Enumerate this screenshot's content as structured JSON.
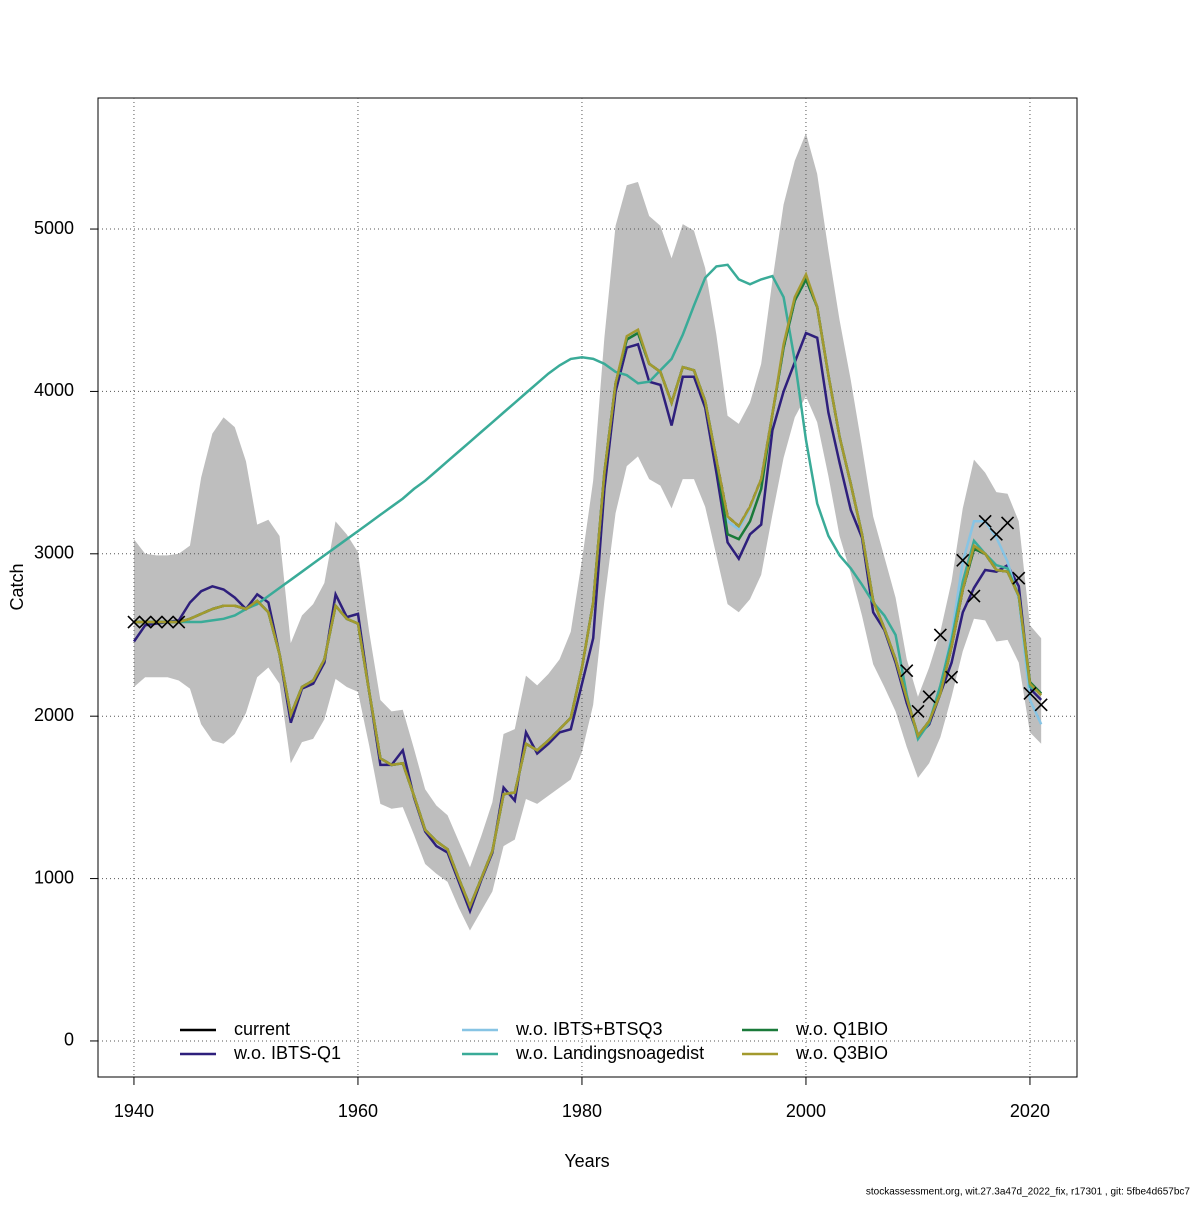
{
  "chart_data": {
    "type": "line",
    "x_label": "Years",
    "y_label": "Catch",
    "footer": "stockassessment.org, wit.27.3a47d_2022_fix, r17301 , git: 5fbe4d657bc7",
    "x": [
      1940,
      1941,
      1942,
      1943,
      1944,
      1945,
      1946,
      1947,
      1948,
      1949,
      1950,
      1951,
      1952,
      1953,
      1954,
      1955,
      1956,
      1957,
      1958,
      1959,
      1960,
      1961,
      1962,
      1963,
      1964,
      1965,
      1966,
      1967,
      1968,
      1969,
      1970,
      1971,
      1972,
      1973,
      1974,
      1975,
      1976,
      1977,
      1978,
      1979,
      1980,
      1981,
      1982,
      1983,
      1984,
      1985,
      1986,
      1987,
      1988,
      1989,
      1990,
      1991,
      1992,
      1993,
      1994,
      1995,
      1996,
      1997,
      1998,
      1999,
      2000,
      2001,
      2002,
      2003,
      2004,
      2005,
      2006,
      2007,
      2008,
      2009,
      2010,
      2011,
      2012,
      2013,
      2014,
      2015,
      2016,
      2017,
      2018,
      2019,
      2020,
      2021
    ],
    "band": {
      "color": "#bebebe",
      "upper": [
        3090,
        3000,
        2990,
        2990,
        3000,
        3050,
        3470,
        3740,
        3840,
        3780,
        3570,
        3180,
        3210,
        3110,
        2450,
        2620,
        2690,
        2820,
        3200,
        3120,
        3010,
        2520,
        2100,
        2030,
        2040,
        1800,
        1550,
        1450,
        1390,
        1230,
        1070,
        1260,
        1470,
        1890,
        1920,
        2250,
        2190,
        2260,
        2350,
        2520,
        2960,
        3450,
        4330,
        5020,
        5270,
        5290,
        5080,
        5020,
        4820,
        5030,
        4990,
        4760,
        4350,
        3850,
        3800,
        3930,
        4170,
        4680,
        5150,
        5420,
        5590,
        5340,
        4870,
        4440,
        4070,
        3660,
        3230,
        2980,
        2730,
        2350,
        2120,
        2300,
        2520,
        2830,
        3280,
        3580,
        3500,
        3380,
        3370,
        3200,
        2560,
        2480
      ],
      "lower": [
        2180,
        2240,
        2240,
        2240,
        2220,
        2170,
        1950,
        1850,
        1830,
        1890,
        2020,
        2240,
        2300,
        2200,
        1710,
        1840,
        1860,
        1980,
        2230,
        2180,
        2150,
        1820,
        1460,
        1430,
        1440,
        1270,
        1090,
        1030,
        980,
        820,
        680,
        800,
        920,
        1200,
        1240,
        1490,
        1460,
        1510,
        1560,
        1610,
        1780,
        2070,
        2710,
        3250,
        3540,
        3600,
        3460,
        3420,
        3280,
        3460,
        3460,
        3290,
        2990,
        2690,
        2640,
        2720,
        2870,
        3240,
        3590,
        3840,
        3970,
        3810,
        3480,
        3110,
        2880,
        2620,
        2320,
        2180,
        2030,
        1810,
        1620,
        1710,
        1870,
        2120,
        2400,
        2600,
        2590,
        2460,
        2470,
        2330,
        1900,
        1830
      ]
    },
    "series": [
      {
        "name": "current",
        "color": "#000000",
        "values": [
          2580,
          2580,
          2580,
          2580,
          2580,
          2600,
          2630,
          2660,
          2680,
          2680,
          2660,
          2710,
          2640,
          2380,
          2010,
          2180,
          2220,
          2350,
          2680,
          2600,
          2570,
          2150,
          1740,
          1700,
          1710,
          1510,
          1300,
          1230,
          1180,
          1000,
          830,
          1000,
          1170,
          1520,
          1530,
          1830,
          1790,
          1850,
          1920,
          1990,
          2300,
          2700,
          3500,
          4050,
          4320,
          4360,
          4170,
          4120,
          3930,
          4150,
          4130,
          3940,
          3580,
          3230,
          3170,
          3290,
          3460,
          3860,
          4270,
          4560,
          4690,
          4520,
          4100,
          3720,
          3430,
          3120,
          2710,
          2540,
          2350,
          2110,
          1880,
          1970,
          2140,
          2430,
          2780,
          3030,
          3000,
          2900,
          2890,
          2740,
          2200,
          2130
        ]
      },
      {
        "name": "w.o. IBTS-Q1",
        "color": "#2e1f7c",
        "values": [
          2460,
          2560,
          2570,
          2580,
          2590,
          2700,
          2770,
          2800,
          2780,
          2730,
          2660,
          2750,
          2700,
          2380,
          1960,
          2170,
          2200,
          2330,
          2750,
          2610,
          2630,
          2150,
          1700,
          1700,
          1790,
          1500,
          1290,
          1200,
          1160,
          980,
          800,
          990,
          1160,
          1560,
          1480,
          1900,
          1770,
          1830,
          1900,
          1920,
          2200,
          2480,
          3400,
          4000,
          4270,
          4290,
          4060,
          4040,
          3790,
          4090,
          4090,
          3900,
          3500,
          3070,
          2970,
          3120,
          3180,
          3760,
          4000,
          4180,
          4360,
          4330,
          3870,
          3560,
          3270,
          3100,
          2640,
          2530,
          2330,
          2080,
          1880,
          1950,
          2140,
          2330,
          2640,
          2790,
          2900,
          2890,
          2930,
          2800,
          2170,
          2100
        ]
      },
      {
        "name": "w.o. IBTS+BTSQ3",
        "color": "#87c4e4",
        "values": [
          2580,
          2580,
          2580,
          2580,
          2580,
          2600,
          2630,
          2660,
          2680,
          2680,
          2660,
          2710,
          2640,
          2380,
          2010,
          2180,
          2220,
          2350,
          2680,
          2600,
          2570,
          2150,
          1740,
          1700,
          1710,
          1510,
          1300,
          1230,
          1180,
          1000,
          830,
          1000,
          1170,
          1520,
          1530,
          1830,
          1790,
          1850,
          1920,
          1990,
          2300,
          2700,
          3500,
          4050,
          4320,
          4360,
          4170,
          4120,
          3930,
          4150,
          4130,
          3940,
          3580,
          3200,
          3150,
          3280,
          3460,
          3860,
          4270,
          4560,
          4690,
          4520,
          4100,
          3720,
          3430,
          3120,
          2710,
          2540,
          2350,
          2110,
          1880,
          1970,
          2180,
          2500,
          2950,
          3200,
          3200,
          3100,
          2950,
          2720,
          2100,
          1950
        ]
      },
      {
        "name": "w.o. Landingsnoagedist",
        "color": "#3aab98",
        "values": [
          2580,
          2580,
          2580,
          2580,
          2580,
          2580,
          2580,
          2590,
          2600,
          2620,
          2660,
          2690,
          2740,
          2790,
          2840,
          2890,
          2940,
          2990,
          3040,
          3090,
          3140,
          3190,
          3240,
          3290,
          3340,
          3400,
          3450,
          3510,
          3570,
          3630,
          3690,
          3750,
          3810,
          3870,
          3930,
          3990,
          4050,
          4110,
          4160,
          4200,
          4210,
          4200,
          4170,
          4120,
          4100,
          4050,
          4060,
          4130,
          4200,
          4350,
          4530,
          4700,
          4770,
          4780,
          4690,
          4660,
          4690,
          4710,
          4580,
          4190,
          3700,
          3310,
          3110,
          2990,
          2910,
          2810,
          2700,
          2620,
          2500,
          2130,
          1860,
          1960,
          2190,
          2470,
          2830,
          3080,
          3000,
          2930,
          2910,
          2740,
          2180,
          2140
        ]
      },
      {
        "name": "w.o. Q1BIO",
        "color": "#1a7a3a",
        "values": [
          2580,
          2580,
          2580,
          2580,
          2580,
          2600,
          2630,
          2660,
          2680,
          2680,
          2660,
          2710,
          2640,
          2380,
          2010,
          2180,
          2220,
          2350,
          2680,
          2600,
          2570,
          2150,
          1740,
          1700,
          1710,
          1510,
          1300,
          1230,
          1180,
          1000,
          830,
          1000,
          1170,
          1520,
          1530,
          1830,
          1790,
          1850,
          1920,
          1990,
          2300,
          2700,
          3500,
          4050,
          4320,
          4360,
          4170,
          4120,
          3930,
          4150,
          4130,
          3940,
          3580,
          3120,
          3090,
          3200,
          3400,
          3860,
          4270,
          4560,
          4690,
          4520,
          4100,
          3720,
          3430,
          3120,
          2710,
          2540,
          2350,
          2110,
          1880,
          1970,
          2140,
          2430,
          2780,
          3030,
          3000,
          2900,
          2890,
          2740,
          2210,
          2140
        ]
      },
      {
        "name": "w.o. Q3BIO",
        "color": "#a39a2e",
        "values": [
          2580,
          2580,
          2580,
          2580,
          2580,
          2600,
          2630,
          2660,
          2680,
          2680,
          2660,
          2710,
          2640,
          2380,
          2010,
          2180,
          2220,
          2350,
          2680,
          2600,
          2570,
          2150,
          1740,
          1700,
          1710,
          1510,
          1300,
          1230,
          1180,
          1000,
          830,
          1000,
          1170,
          1520,
          1530,
          1830,
          1790,
          1850,
          1920,
          1990,
          2300,
          2700,
          3500,
          4050,
          4340,
          4380,
          4170,
          4120,
          3930,
          4150,
          4130,
          3940,
          3580,
          3230,
          3170,
          3290,
          3460,
          3860,
          4290,
          4580,
          4720,
          4520,
          4100,
          3720,
          3430,
          3120,
          2710,
          2540,
          2350,
          2110,
          1880,
          1970,
          2140,
          2430,
          2780,
          3050,
          3000,
          2900,
          2890,
          2740,
          2200,
          2130
        ]
      }
    ],
    "points": {
      "color": "#000000",
      "x": [
        1940,
        1941,
        1942,
        1943,
        1944,
        2009,
        2010,
        2011,
        2012,
        2013,
        2014,
        2015,
        2016,
        2017,
        2018,
        2019,
        2020,
        2021
      ],
      "values": [
        2580,
        2580,
        2580,
        2580,
        2580,
        2280,
        2030,
        2120,
        2500,
        2240,
        2960,
        2740,
        3200,
        3120,
        3190,
        2850,
        2140,
        2070
      ]
    },
    "xlim": [
      1936.79,
      2024.2
    ],
    "ylim": [
      -222,
      5807
    ],
    "xticks": [
      1940,
      1960,
      1980,
      2000,
      2020
    ],
    "yticks": [
      0,
      1000,
      2000,
      3000,
      4000,
      5000
    ],
    "grid": true
  }
}
